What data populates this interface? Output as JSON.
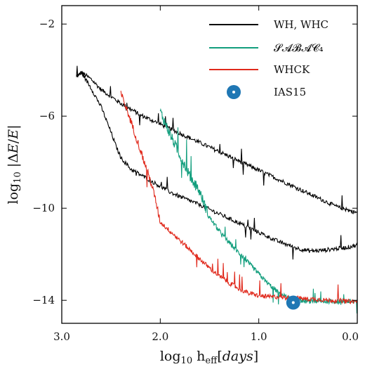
{
  "chart_data": {
    "type": "line",
    "xlabel": "log10 h_eff[days]",
    "ylabel": "log10 |ΔE/E|",
    "x_reversed": true,
    "xlim": [
      3.0,
      0.0
    ],
    "ylim": [
      -15.0,
      -1.2
    ],
    "xticks": [
      {
        "value": 3.0,
        "label": "3.0"
      },
      {
        "value": 2.0,
        "label": "2.0"
      },
      {
        "value": 1.0,
        "label": "1.0"
      },
      {
        "value": 0.0,
        "label": "0.0"
      }
    ],
    "yticks": [
      {
        "value": -2,
        "label": "−2"
      },
      {
        "value": -6,
        "label": "−6"
      },
      {
        "value": -10,
        "label": "−10"
      },
      {
        "value": -14,
        "label": "−14"
      }
    ],
    "legend_position": "top-right",
    "series": [
      {
        "name": "WH, WHC",
        "color": "#000000",
        "noise": 0.18,
        "x": [
          2.85,
          2.8,
          2.7,
          2.6,
          2.5,
          2.4,
          2.3,
          2.2,
          2.1,
          2.0,
          1.8,
          1.6,
          1.4,
          1.2,
          1.0,
          0.8,
          0.6,
          0.4,
          0.2,
          0.0
        ],
        "y": [
          -4.3,
          -4.1,
          -4.4,
          -4.85,
          -5.15,
          -5.45,
          -5.7,
          -5.95,
          -6.15,
          -6.35,
          -6.75,
          -7.15,
          -7.55,
          -7.95,
          -8.35,
          -8.75,
          -9.15,
          -9.55,
          -9.95,
          -10.2
        ]
      },
      {
        "name": "WH, WHC",
        "color": "#000000",
        "noise": 0.18,
        "x": [
          2.85,
          2.8,
          2.7,
          2.6,
          2.5,
          2.45,
          2.4,
          2.3,
          2.2,
          2.1,
          2.0,
          1.9,
          1.8,
          1.6,
          1.4,
          1.2,
          1.0,
          0.8,
          0.6,
          0.5,
          0.4,
          0.3,
          0.2,
          0.1,
          0.0
        ],
        "y": [
          -4.3,
          -4.1,
          -4.8,
          -5.6,
          -6.7,
          -7.3,
          -7.8,
          -8.3,
          -8.55,
          -8.8,
          -9.05,
          -9.3,
          -9.5,
          -9.85,
          -10.25,
          -10.65,
          -11.05,
          -11.45,
          -11.75,
          -11.85,
          -11.85,
          -11.8,
          -11.75,
          -11.7,
          -11.6
        ]
      },
      {
        "name": "𝓢𝓐𝓑𝓐𝓒₄",
        "color": "#129e7d",
        "noise": 0.2,
        "x": [
          2.0,
          1.9,
          1.8,
          1.7,
          1.6,
          1.5,
          1.4,
          1.3,
          1.2,
          1.1,
          1.0,
          0.9,
          0.8,
          0.7,
          0.6,
          0.5,
          0.4,
          0.3,
          0.2,
          0.1,
          0.0
        ],
        "y": [
          -5.8,
          -6.8,
          -7.7,
          -8.6,
          -9.3,
          -10.4,
          -11.0,
          -11.5,
          -11.95,
          -12.4,
          -12.85,
          -13.3,
          -13.65,
          -13.9,
          -14.0,
          -14.05,
          -14.05,
          -14.05,
          -14.05,
          -14.05,
          -14.05
        ]
      },
      {
        "name": "WHCK",
        "color": "#e0291c",
        "noise": 0.2,
        "x": [
          2.4,
          2.3,
          2.2,
          2.1,
          2.05,
          2.0,
          1.9,
          1.8,
          1.7,
          1.6,
          1.5,
          1.4,
          1.3,
          1.2,
          1.1,
          1.0,
          0.9,
          0.8,
          0.7,
          0.6,
          0.5,
          0.4,
          0.3,
          0.2,
          0.1,
          0.0
        ],
        "y": [
          -5.0,
          -6.2,
          -7.5,
          -8.8,
          -9.6,
          -10.6,
          -11.0,
          -11.4,
          -11.8,
          -12.2,
          -12.6,
          -12.95,
          -13.25,
          -13.5,
          -13.7,
          -13.8,
          -13.85,
          -13.85,
          -13.9,
          -13.9,
          -13.95,
          -13.95,
          -14.0,
          -14.0,
          -14.05,
          -14.05
        ]
      }
    ],
    "scatter": [
      {
        "name": "IAS15",
        "color": "#1f77b4",
        "x": 0.65,
        "y": -14.1
      }
    ],
    "legend": [
      {
        "label": "WH, WHC",
        "color": "#000000",
        "marker": "line"
      },
      {
        "label": "𝓢𝓐𝓑𝓐𝓒₄",
        "color": "#129e7d",
        "marker": "line"
      },
      {
        "label": "WHCK",
        "color": "#e0291c",
        "marker": "line"
      },
      {
        "label": "IAS15",
        "color": "#1f77b4",
        "marker": "dot"
      }
    ]
  }
}
